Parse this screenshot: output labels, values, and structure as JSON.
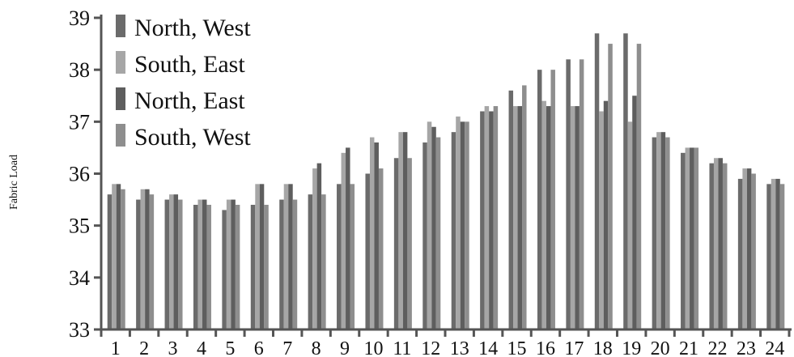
{
  "chart_data": {
    "type": "bar",
    "title": "",
    "xlabel": "",
    "ylabel": "Fabric Load",
    "ylim": [
      33,
      39
    ],
    "yticks": [
      33,
      34,
      35,
      36,
      37,
      38,
      39
    ],
    "grid": false,
    "legend_position": "top-left",
    "categories": [
      "1",
      "2",
      "3",
      "4",
      "5",
      "6",
      "7",
      "8",
      "9",
      "10",
      "11",
      "12",
      "13",
      "14",
      "15",
      "16",
      "17",
      "18",
      "19",
      "20",
      "21",
      "22",
      "23",
      "24"
    ],
    "series": [
      {
        "name": "North, West",
        "color": "#6b6b6b",
        "values": [
          35.6,
          35.5,
          35.5,
          35.4,
          35.3,
          35.4,
          35.5,
          35.6,
          35.8,
          36.0,
          36.3,
          36.6,
          36.8,
          37.2,
          37.6,
          38.0,
          38.2,
          38.7,
          38.7,
          36.7,
          36.4,
          36.2,
          35.9,
          35.8
        ]
      },
      {
        "name": "South, East",
        "color": "#a6a6a6",
        "values": [
          35.8,
          35.7,
          35.6,
          35.5,
          35.5,
          35.8,
          35.8,
          36.1,
          36.4,
          36.7,
          36.8,
          37.0,
          37.1,
          37.3,
          37.3,
          37.4,
          37.3,
          37.2,
          37.0,
          36.8,
          36.5,
          36.3,
          36.1,
          35.9
        ]
      },
      {
        "name": "North, East",
        "color": "#5e5e5e",
        "values": [
          35.8,
          35.7,
          35.6,
          35.5,
          35.5,
          35.8,
          35.8,
          36.2,
          36.5,
          36.6,
          36.8,
          36.9,
          37.0,
          37.2,
          37.3,
          37.3,
          37.3,
          37.4,
          37.5,
          36.8,
          36.5,
          36.3,
          36.1,
          35.9
        ]
      },
      {
        "name": "South, West",
        "color": "#8e8e8e",
        "values": [
          35.7,
          35.6,
          35.5,
          35.4,
          35.4,
          35.4,
          35.5,
          35.6,
          35.8,
          36.1,
          36.3,
          36.7,
          37.0,
          37.3,
          37.7,
          38.0,
          38.2,
          38.5,
          38.5,
          36.7,
          36.5,
          36.2,
          36.0,
          35.8
        ]
      }
    ]
  }
}
